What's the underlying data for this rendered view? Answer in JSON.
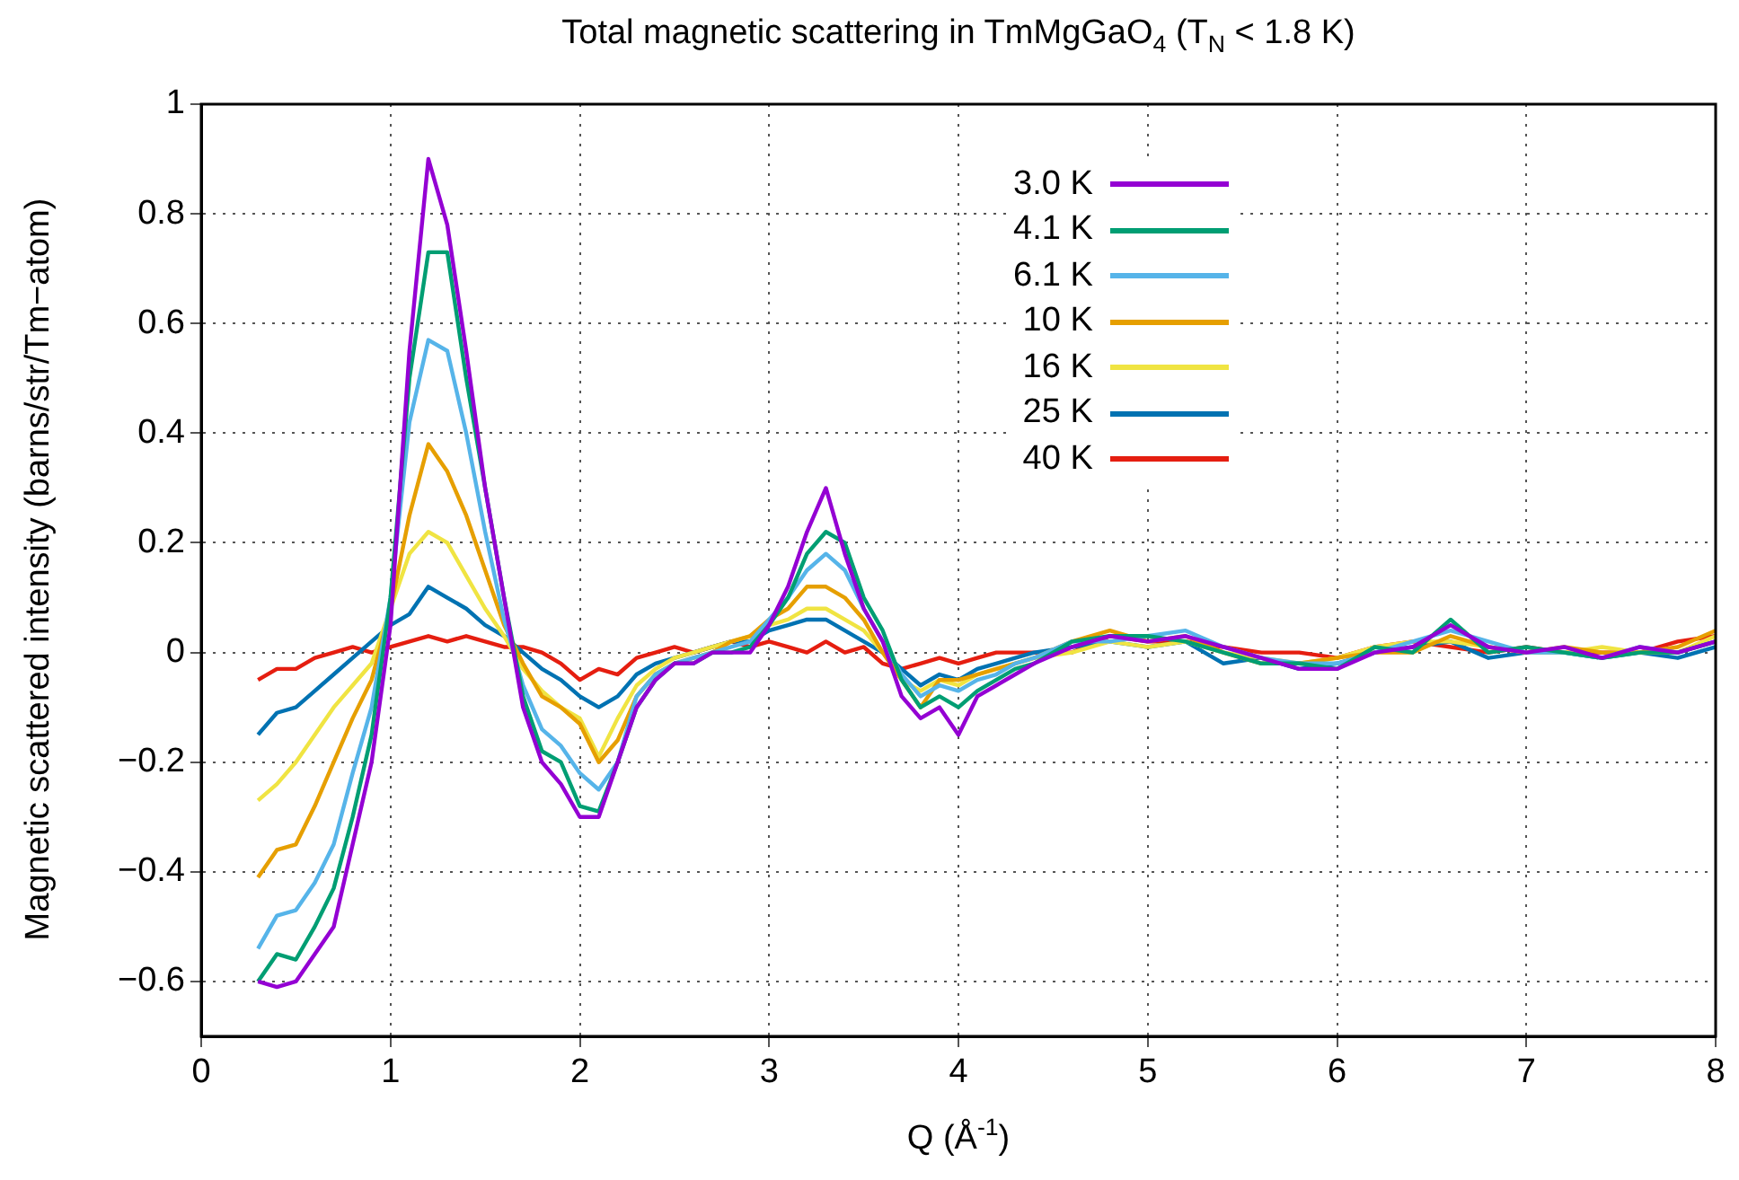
{
  "chart_data": {
    "type": "line",
    "title": "Total magnetic scattering in TmMgGaO$_{4}$ (T$_{N}$ < 1.8 K)",
    "xlabel": "Q (Å$^{-1}$)",
    "ylabel": "Magnetic scattered intensity (barns/str/Tm−atom)",
    "x": [
      0.3,
      0.4,
      0.5,
      0.6,
      0.7,
      0.8,
      0.9,
      1.0,
      1.1,
      1.2,
      1.3,
      1.4,
      1.5,
      1.6,
      1.7,
      1.8,
      1.9,
      2.0,
      2.1,
      2.2,
      2.3,
      2.4,
      2.5,
      2.6,
      2.7,
      2.8,
      2.9,
      3.0,
      3.1,
      3.2,
      3.3,
      3.4,
      3.5,
      3.6,
      3.7,
      3.8,
      3.9,
      4.0,
      4.1,
      4.2,
      4.3,
      4.4,
      4.6,
      4.8,
      5.0,
      5.2,
      5.4,
      5.6,
      5.8,
      6.0,
      6.2,
      6.4,
      6.6,
      6.8,
      7.0,
      7.2,
      7.4,
      7.6,
      7.8,
      8.0
    ],
    "series": [
      {
        "name": "3.0 K",
        "color": "#9400d3",
        "values": [
          -0.6,
          -0.61,
          -0.6,
          -0.55,
          -0.5,
          -0.35,
          -0.2,
          0.05,
          0.55,
          0.9,
          0.78,
          0.55,
          0.3,
          0.1,
          -0.1,
          -0.2,
          -0.24,
          -0.3,
          -0.3,
          -0.2,
          -0.1,
          -0.05,
          -0.02,
          -0.02,
          0,
          0,
          0,
          0.05,
          0.12,
          0.22,
          0.3,
          0.18,
          0.08,
          0.02,
          -0.08,
          -0.12,
          -0.1,
          -0.15,
          -0.08,
          -0.06,
          -0.04,
          -0.02,
          0.01,
          0.03,
          0.02,
          0.03,
          0.01,
          -0.01,
          -0.03,
          -0.03,
          0,
          0.01,
          0.05,
          0.01,
          0,
          0.01,
          -0.01,
          0.01,
          0,
          0.02
        ]
      },
      {
        "name": "4.1 K",
        "color": "#009e73",
        "values": [
          -0.6,
          -0.55,
          -0.56,
          -0.5,
          -0.43,
          -0.3,
          -0.15,
          0.1,
          0.5,
          0.73,
          0.73,
          0.5,
          0.3,
          0.1,
          -0.08,
          -0.18,
          -0.2,
          -0.28,
          -0.29,
          -0.2,
          -0.1,
          -0.05,
          -0.02,
          -0.02,
          0,
          0,
          0.01,
          0.05,
          0.1,
          0.18,
          0.22,
          0.2,
          0.1,
          0.04,
          -0.05,
          -0.1,
          -0.08,
          -0.1,
          -0.07,
          -0.05,
          -0.03,
          -0.02,
          0.02,
          0.03,
          0.03,
          0.02,
          0,
          -0.02,
          -0.02,
          -0.03,
          0.01,
          0,
          0.06,
          0,
          0.01,
          0,
          -0.01,
          0,
          0,
          0.02
        ]
      },
      {
        "name": "6.1 K",
        "color": "#56b4e9",
        "values": [
          -0.54,
          -0.48,
          -0.47,
          -0.42,
          -0.35,
          -0.22,
          -0.1,
          0.1,
          0.42,
          0.57,
          0.55,
          0.4,
          0.22,
          0.06,
          -0.06,
          -0.14,
          -0.17,
          -0.22,
          -0.25,
          -0.2,
          -0.08,
          -0.04,
          -0.02,
          -0.01,
          0,
          0.01,
          0.02,
          0.06,
          0.1,
          0.15,
          0.18,
          0.15,
          0.08,
          0.02,
          -0.04,
          -0.08,
          -0.06,
          -0.07,
          -0.05,
          -0.04,
          -0.02,
          -0.01,
          0.02,
          0.02,
          0.03,
          0.04,
          0.01,
          -0.01,
          -0.02,
          -0.02,
          0,
          0.02,
          0.04,
          0.02,
          0,
          0,
          -0.01,
          0.01,
          0,
          0.02
        ]
      },
      {
        "name": "10 K",
        "color": "#e69f00",
        "values": [
          -0.41,
          -0.36,
          -0.35,
          -0.28,
          -0.2,
          -0.12,
          -0.05,
          0.08,
          0.25,
          0.38,
          0.33,
          0.25,
          0.15,
          0.05,
          -0.02,
          -0.08,
          -0.1,
          -0.13,
          -0.2,
          -0.16,
          -0.08,
          -0.04,
          -0.02,
          -0.01,
          0,
          0.02,
          0.03,
          0.06,
          0.08,
          0.12,
          0.12,
          0.1,
          0.06,
          0,
          -0.05,
          -0.1,
          -0.05,
          -0.05,
          -0.04,
          -0.03,
          -0.02,
          -0.01,
          0.02,
          0.04,
          0.02,
          0.03,
          0,
          -0.02,
          -0.02,
          -0.01,
          0,
          0,
          0.03,
          0.01,
          0,
          0.01,
          0,
          0,
          0.01,
          0.04
        ]
      },
      {
        "name": "16 K",
        "color": "#f0e442",
        "values": [
          -0.27,
          -0.24,
          -0.2,
          -0.15,
          -0.1,
          -0.06,
          -0.02,
          0.08,
          0.18,
          0.22,
          0.2,
          0.14,
          0.08,
          0.03,
          -0.03,
          -0.07,
          -0.1,
          -0.12,
          -0.19,
          -0.12,
          -0.06,
          -0.03,
          -0.01,
          0,
          0.01,
          0.02,
          0.03,
          0.05,
          0.06,
          0.08,
          0.08,
          0.06,
          0.04,
          0,
          -0.05,
          -0.07,
          -0.05,
          -0.06,
          -0.04,
          -0.03,
          -0.02,
          -0.01,
          0,
          0.02,
          0.01,
          0.02,
          0,
          -0.01,
          -0.02,
          -0.01,
          0.01,
          0.02,
          0.02,
          0.01,
          0,
          0,
          0.01,
          0,
          0,
          0.03
        ]
      },
      {
        "name": "25 K",
        "color": "#0072b2",
        "values": [
          -0.15,
          -0.11,
          -0.1,
          -0.07,
          -0.04,
          -0.01,
          0.02,
          0.05,
          0.07,
          0.12,
          0.1,
          0.08,
          0.05,
          0.03,
          0,
          -0.03,
          -0.05,
          -0.08,
          -0.1,
          -0.08,
          -0.04,
          -0.02,
          -0.01,
          0,
          0.01,
          0.02,
          0.02,
          0.04,
          0.05,
          0.06,
          0.06,
          0.04,
          0.02,
          0,
          -0.03,
          -0.06,
          -0.04,
          -0.05,
          -0.03,
          -0.02,
          -0.01,
          0,
          0.01,
          0.02,
          0.01,
          0.02,
          -0.02,
          -0.01,
          -0.03,
          -0.02,
          0,
          0.01,
          0.02,
          -0.01,
          0,
          0,
          -0.01,
          0,
          -0.01,
          0.01
        ]
      },
      {
        "name": "40 K",
        "color": "#e51e10",
        "values": [
          -0.05,
          -0.03,
          -0.03,
          -0.01,
          0,
          0.01,
          0,
          0.01,
          0.02,
          0.03,
          0.02,
          0.03,
          0.02,
          0.01,
          0.01,
          0,
          -0.02,
          -0.05,
          -0.03,
          -0.04,
          -0.01,
          0,
          0.01,
          0,
          0.01,
          0.02,
          0.01,
          0.02,
          0.01,
          0,
          0.02,
          0,
          0.01,
          -0.02,
          -0.03,
          -0.02,
          -0.01,
          -0.02,
          -0.01,
          0,
          0,
          0,
          0,
          0.03,
          0.02,
          0.02,
          0.01,
          0,
          0,
          -0.01,
          0.01,
          0.02,
          0.01,
          0,
          0.01,
          0,
          0,
          0,
          0.02,
          0.03
        ]
      }
    ],
    "xlim": [
      0,
      8
    ],
    "xticks": [
      0,
      1,
      2,
      3,
      4,
      5,
      6,
      7,
      8
    ],
    "ylim": [
      -0.7,
      1
    ],
    "yticks": [
      {
        "value": -0.6,
        "label": "−0.6"
      },
      {
        "value": -0.4,
        "label": "−0.4"
      },
      {
        "value": -0.2,
        "label": "−0.2"
      },
      0,
      0.2,
      0.4,
      0.6,
      0.8,
      1
    ],
    "grid": true,
    "legend": "top right"
  }
}
